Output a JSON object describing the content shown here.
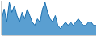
{
  "chart_data": {
    "type": "area",
    "categories": [
      null,
      null,
      null,
      null,
      null,
      null,
      null,
      null,
      null,
      null,
      null,
      null,
      null,
      null,
      null,
      null,
      null,
      null,
      null,
      null,
      null,
      null,
      null,
      null,
      null,
      null,
      null,
      null,
      null,
      null,
      null,
      null,
      null,
      null,
      null,
      null,
      null,
      null
    ],
    "series": [
      {
        "type": "line",
        "color": "#1a6faf",
        "values": [
          5,
          8,
          4,
          10,
          7,
          9,
          6,
          4,
          7,
          5,
          8,
          6,
          4,
          3,
          5,
          4,
          8,
          10,
          7,
          5,
          4,
          6,
          3,
          2,
          3,
          4,
          3,
          4,
          3,
          4,
          5,
          4,
          3,
          3,
          4,
          4,
          3,
          3
        ]
      },
      {
        "type": "area",
        "color": "#3d8ec9",
        "values": [
          5,
          8,
          4,
          10,
          7,
          9,
          6,
          4,
          7,
          5,
          8,
          6,
          4,
          3,
          5,
          4,
          8,
          10,
          7,
          5,
          4,
          6,
          3,
          2,
          3,
          4,
          3,
          4,
          3,
          4,
          5,
          4,
          3,
          3,
          4,
          4,
          3,
          3
        ]
      }
    ],
    "ylim": [
      0,
      10.5
    ],
    "tick_labels": false,
    "grid": false
  }
}
